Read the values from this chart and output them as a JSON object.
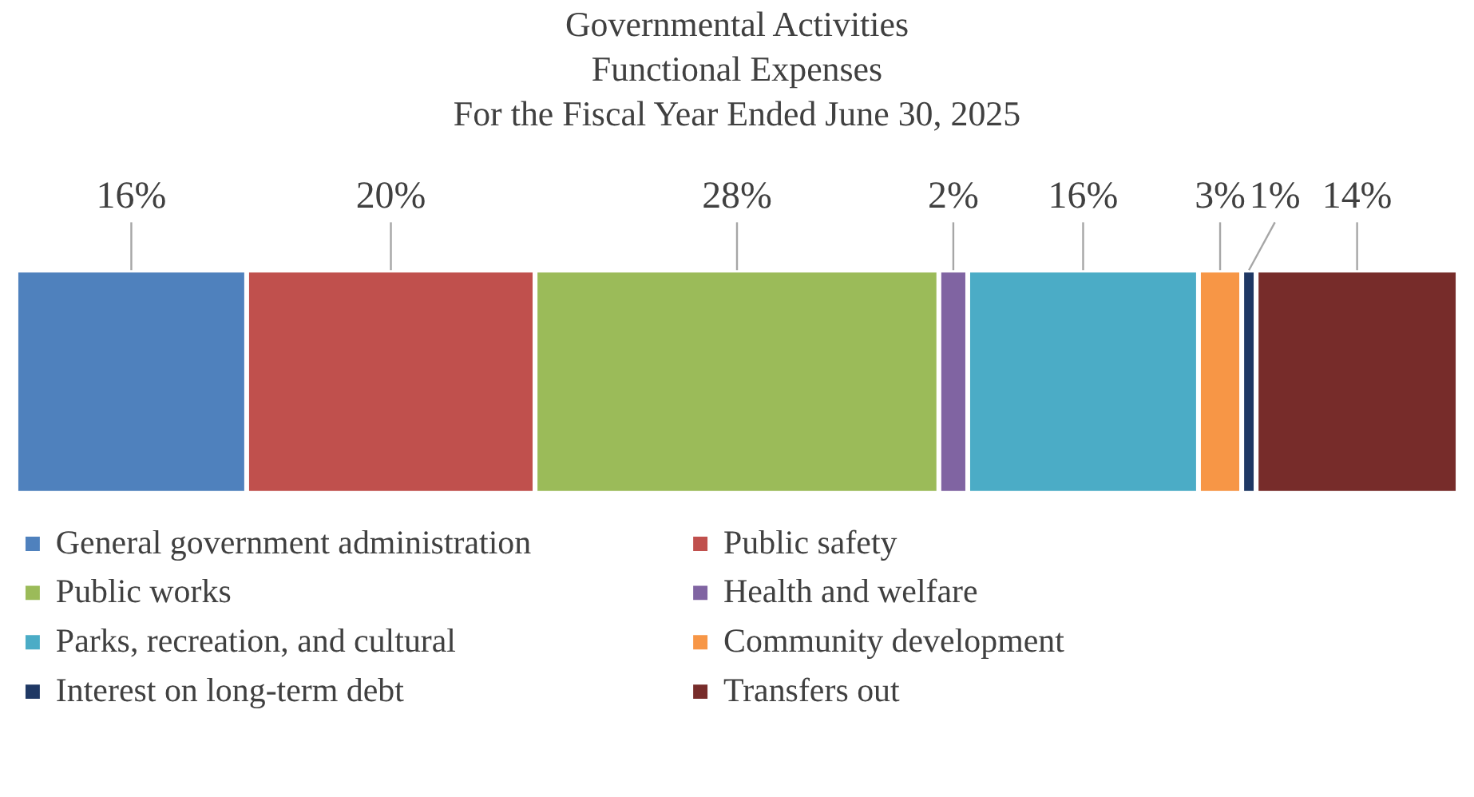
{
  "chart_data": {
    "type": "bar",
    "orientation": "horizontal",
    "stacked": true,
    "title": "Governmental Activities\nFunctional Expenses\nFor the Fiscal Year Ended June 30, 2025",
    "categories": [
      null
    ],
    "legend": "bottom",
    "series": [
      {
        "name": "General government administration",
        "color": "#4f81bd",
        "values": [
          16
        ],
        "value_labels": [
          "16%"
        ]
      },
      {
        "name": "Public safety",
        "color": "#c0504d",
        "values": [
          20
        ],
        "value_labels": [
          "20%"
        ]
      },
      {
        "name": "Public works",
        "color": "#9bbb59",
        "values": [
          28
        ],
        "value_labels": [
          "28%"
        ]
      },
      {
        "name": "Health and welfare",
        "color": "#8064a2",
        "values": [
          2
        ],
        "value_labels": [
          "2%"
        ]
      },
      {
        "name": "Parks, recreation, and cultural",
        "color": "#4bacc6",
        "values": [
          16
        ],
        "value_labels": [
          "16%"
        ]
      },
      {
        "name": "Community development",
        "color": "#f79646",
        "values": [
          3
        ],
        "value_labels": [
          "3%"
        ]
      },
      {
        "name": "Interest on long-term debt",
        "color": "#1f3864",
        "values": [
          1
        ],
        "value_labels": [
          "1%"
        ]
      },
      {
        "name": "Transfers out",
        "color": "#772c2a",
        "values": [
          14
        ],
        "value_labels": [
          "14%"
        ]
      }
    ]
  }
}
